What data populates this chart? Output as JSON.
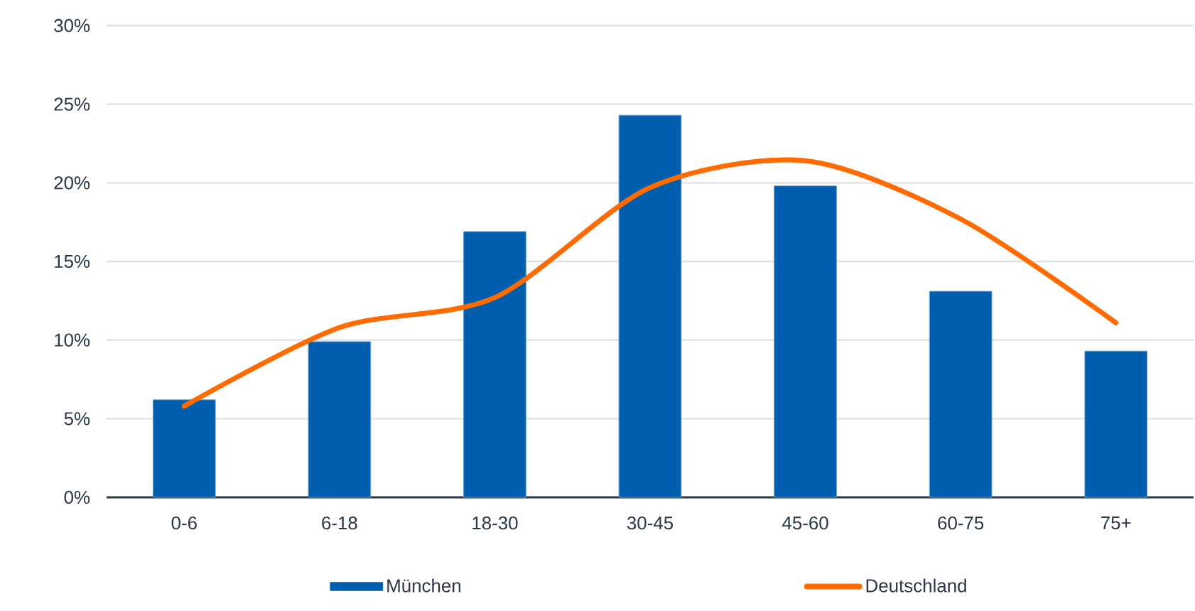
{
  "chart_data": {
    "type": "bar",
    "categories": [
      "0-6",
      "6-18",
      "18-30",
      "30-45",
      "45-60",
      "60-75",
      "75+"
    ],
    "series": [
      {
        "name": "München",
        "color": "#005eae",
        "values": [
          6.2,
          9.9,
          16.9,
          24.3,
          19.8,
          13.1,
          9.3
        ]
      },
      {
        "name": "Deutschland",
        "type": "line",
        "color": "#ff6b00",
        "values": [
          5.8,
          10.8,
          12.7,
          19.7,
          21.4,
          17.7,
          11.1
        ]
      }
    ],
    "ylim": [
      0,
      30
    ],
    "yticks": [
      {
        "value": 0,
        "label": "0%"
      },
      {
        "value": 5,
        "label": "5%"
      },
      {
        "value": 10,
        "label": "10%"
      },
      {
        "value": 15,
        "label": "15%"
      },
      {
        "value": 20,
        "label": "20%"
      },
      {
        "value": 25,
        "label": "25%"
      },
      {
        "value": 30,
        "label": "30%"
      }
    ],
    "grid": "y",
    "legend": "bottom",
    "marker": "none",
    "line_style": "solid"
  }
}
